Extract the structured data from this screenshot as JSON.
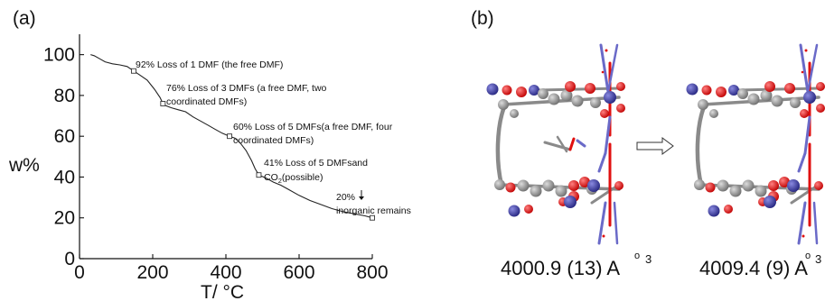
{
  "chart_data": {
    "type": "line",
    "panel_label": "(a)",
    "xlabel": "T/ °C",
    "ylabel": "w%",
    "xlim": [
      0,
      800
    ],
    "ylim": [
      0,
      110
    ],
    "x_ticks": [
      0,
      200,
      400,
      600,
      800
    ],
    "y_ticks": [
      0,
      20,
      40,
      60,
      80,
      100
    ],
    "grid": false,
    "series": [
      {
        "x": [
          30,
          40,
          55,
          70,
          90,
          110,
          130,
          148,
          165,
          185,
          205,
          220,
          228,
          235,
          250,
          270,
          290,
          310,
          330,
          350,
          370,
          390,
          410,
          425,
          440,
          455,
          470,
          480,
          490,
          510,
          530,
          550,
          570,
          600,
          630,
          660,
          690,
          720,
          750,
          780,
          800
        ],
        "y": [
          100,
          99.5,
          98,
          96.5,
          95.5,
          95,
          94.2,
          92,
          90,
          87.5,
          83,
          79,
          76,
          75,
          74,
          73,
          72,
          69.5,
          67.5,
          65.5,
          63.5,
          61.5,
          60,
          59,
          56.5,
          53,
          48,
          44,
          41,
          39.5,
          37.5,
          36,
          34,
          31,
          28.5,
          26.5,
          24.5,
          23,
          22,
          21,
          20
        ]
      }
    ],
    "markers": [
      {
        "x": 148,
        "y": 92
      },
      {
        "x": 228,
        "y": 76
      },
      {
        "x": 410,
        "y": 60
      },
      {
        "x": 490,
        "y": 41
      },
      {
        "x": 800,
        "y": 20
      }
    ],
    "annotations": [
      {
        "lines": [
          "92%  Loss of 1 DMF (the free DMF)"
        ]
      },
      {
        "lines": [
          "76% Loss of 3 DMFs (a free DMF, two",
          "coordinated DMFs)"
        ]
      },
      {
        "lines": [
          "60% Loss of 5 DMFs(a free DMF, four",
          "coordinated DMFs)"
        ]
      },
      {
        "lines": [
          "41% Loss of 5 DMFsand"
        ],
        "co2": {
          "main": "CO",
          "sub": "2",
          "rest": "(possible)"
        }
      },
      {
        "lines": [
          "20%",
          "inorganic remains"
        ]
      }
    ]
  },
  "panel_b": {
    "label": "(b)",
    "volumes": [
      {
        "value": "4000.9 (13) A",
        "ring": "o",
        "exp": "3"
      },
      {
        "value": "4009.4 (9) A",
        "ring": "o",
        "exp": "3"
      }
    ],
    "colors": {
      "carbon": "#8a8a8a",
      "oxygen": "#e01010",
      "metal": "#3a3aa8",
      "nitrogen": "#6a6ac8"
    }
  }
}
